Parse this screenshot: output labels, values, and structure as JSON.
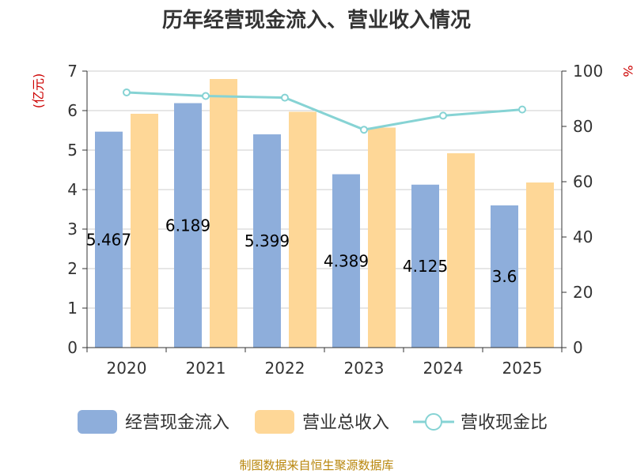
{
  "chart_data": {
    "type": "bar",
    "title": "历年经营现金流入、营业收入情况",
    "categories": [
      "2020",
      "2021",
      "2022",
      "2023",
      "2024",
      "2025"
    ],
    "y_left": {
      "unit": "(亿元)",
      "range": [
        0,
        7
      ],
      "ticks": [
        "0",
        "1",
        "2",
        "3",
        "4",
        "5",
        "6",
        "7"
      ]
    },
    "y_right": {
      "unit": "%",
      "range": [
        0,
        100
      ],
      "ticks": [
        "0",
        "20",
        "40",
        "60",
        "80",
        "100"
      ]
    },
    "series": [
      {
        "name": "经营现金流入",
        "type": "bar",
        "axis": "left",
        "color": "#8eaedb",
        "values": [
          5.467,
          6.189,
          5.399,
          4.389,
          4.125,
          3.6
        ],
        "labels": [
          "5.467",
          "6.189",
          "5.399",
          "4.389",
          "4.125",
          "3.6"
        ]
      },
      {
        "name": "营业总收入",
        "type": "bar",
        "axis": "left",
        "color": "#fed797",
        "values": [
          5.92,
          6.8,
          5.97,
          5.57,
          4.92,
          4.18
        ]
      },
      {
        "name": "营收现金比",
        "type": "line",
        "axis": "right",
        "color": "#86d3d4",
        "values": [
          92.3,
          91.0,
          90.4,
          78.8,
          83.9,
          86.1
        ]
      }
    ],
    "grid": true,
    "legend_position": "bottom"
  },
  "source_text": "制图数据来自恒生聚源数据库"
}
